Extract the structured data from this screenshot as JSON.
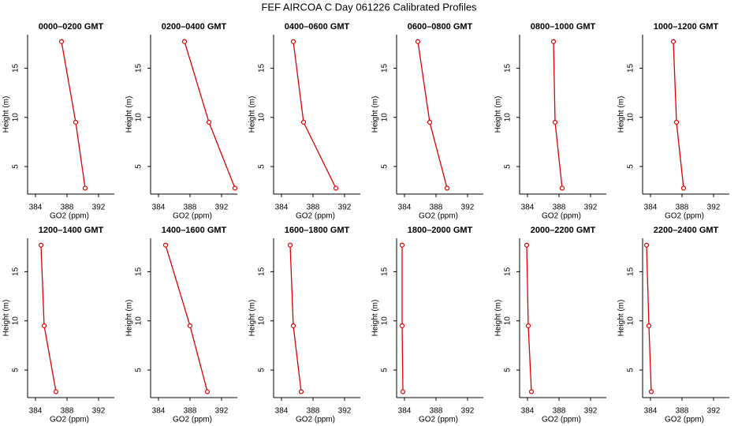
{
  "title": "FEF AIRCOA C  Day 061226  Calibrated Profiles",
  "chart_data": [
    {
      "type": "line",
      "title": "0000–0200 GMT",
      "x_label": "GO2 (ppm)",
      "y_label": "Height (m)",
      "color": "#dd0000",
      "x": [
        387.3,
        389.1,
        390.3
      ],
      "values": [
        17.7,
        9.5,
        2.8
      ],
      "xlim": [
        383,
        394
      ],
      "ylim": [
        2.2,
        18.4
      ],
      "xticks": [
        384,
        388,
        392
      ],
      "yticks": [
        5,
        10,
        15
      ]
    },
    {
      "type": "line",
      "title": "0200–0400 GMT",
      "x_label": "GO2 (ppm)",
      "y_label": "Height (m)",
      "color": "#dd0000",
      "x": [
        387.3,
        390.4,
        393.7
      ],
      "values": [
        17.7,
        9.5,
        2.8
      ],
      "xlim": [
        383,
        394
      ],
      "ylim": [
        2.2,
        18.4
      ],
      "xticks": [
        384,
        388,
        392
      ],
      "yticks": [
        5,
        10,
        15
      ]
    },
    {
      "type": "line",
      "title": "0400–0600 GMT",
      "x_label": "GO2 (ppm)",
      "y_label": "Height (m)",
      "color": "#dd0000",
      "x": [
        385.5,
        386.8,
        390.9
      ],
      "values": [
        17.7,
        9.5,
        2.8
      ],
      "xlim": [
        383,
        394
      ],
      "ylim": [
        2.2,
        18.4
      ],
      "xticks": [
        384,
        388,
        392
      ],
      "yticks": [
        5,
        10,
        15
      ]
    },
    {
      "type": "line",
      "title": "0600–0800 GMT",
      "x_label": "GO2 (ppm)",
      "y_label": "Height (m)",
      "color": "#dd0000",
      "x": [
        385.7,
        387.2,
        389.4
      ],
      "values": [
        17.7,
        9.5,
        2.8
      ],
      "xlim": [
        383,
        394
      ],
      "ylim": [
        2.2,
        18.4
      ],
      "xticks": [
        384,
        388,
        392
      ],
      "yticks": [
        5,
        10,
        15
      ]
    },
    {
      "type": "line",
      "title": "0800–1000 GMT",
      "x_label": "GO2 (ppm)",
      "y_label": "Height (m)",
      "color": "#dd0000",
      "x": [
        387.3,
        387.5,
        388.4
      ],
      "values": [
        17.7,
        9.5,
        2.8
      ],
      "xlim": [
        383,
        394
      ],
      "ylim": [
        2.2,
        18.4
      ],
      "xticks": [
        384,
        388,
        392
      ],
      "yticks": [
        5,
        10,
        15
      ]
    },
    {
      "type": "line",
      "title": "1000–1200 GMT",
      "x_label": "GO2 (ppm)",
      "y_label": "Height (m)",
      "color": "#dd0000",
      "x": [
        386.9,
        387.3,
        388.2
      ],
      "values": [
        17.7,
        9.5,
        2.8
      ],
      "xlim": [
        383,
        394
      ],
      "ylim": [
        2.2,
        18.4
      ],
      "xticks": [
        384,
        388,
        392
      ],
      "yticks": [
        5,
        10,
        15
      ]
    },
    {
      "type": "line",
      "title": "1200–1400 GMT",
      "x_label": "GO2 (ppm)",
      "y_label": "Height (m)",
      "color": "#dd0000",
      "x": [
        384.7,
        385.1,
        386.6
      ],
      "values": [
        17.7,
        9.5,
        2.8
      ],
      "xlim": [
        383,
        394
      ],
      "ylim": [
        2.2,
        18.4
      ],
      "xticks": [
        384,
        388,
        392
      ],
      "yticks": [
        5,
        10,
        15
      ]
    },
    {
      "type": "line",
      "title": "1400–1600 GMT",
      "x_label": "GO2 (ppm)",
      "y_label": "Height (m)",
      "color": "#dd0000",
      "x": [
        384.9,
        388.0,
        390.2
      ],
      "values": [
        17.7,
        9.5,
        2.8
      ],
      "xlim": [
        383,
        394
      ],
      "ylim": [
        2.2,
        18.4
      ],
      "xticks": [
        384,
        388,
        392
      ],
      "yticks": [
        5,
        10,
        15
      ]
    },
    {
      "type": "line",
      "title": "1600–1800 GMT",
      "x_label": "GO2 (ppm)",
      "y_label": "Height (m)",
      "color": "#dd0000",
      "x": [
        385.1,
        385.5,
        386.5
      ],
      "values": [
        17.7,
        9.5,
        2.8
      ],
      "xlim": [
        383,
        394
      ],
      "ylim": [
        2.2,
        18.4
      ],
      "xticks": [
        384,
        388,
        392
      ],
      "yticks": [
        5,
        10,
        15
      ]
    },
    {
      "type": "line",
      "title": "1800–2000 GMT",
      "x_label": "GO2 (ppm)",
      "y_label": "Height (m)",
      "color": "#dd0000",
      "x": [
        383.7,
        383.7,
        383.8
      ],
      "values": [
        17.7,
        9.5,
        2.8
      ],
      "xlim": [
        383,
        394
      ],
      "ylim": [
        2.2,
        18.4
      ],
      "xticks": [
        384,
        388,
        392
      ],
      "yticks": [
        5,
        10,
        15
      ]
    },
    {
      "type": "line",
      "title": "2000–2200 GMT",
      "x_label": "GO2 (ppm)",
      "y_label": "Height (m)",
      "color": "#dd0000",
      "x": [
        383.9,
        384.1,
        384.5
      ],
      "values": [
        17.7,
        9.5,
        2.8
      ],
      "xlim": [
        383,
        394
      ],
      "ylim": [
        2.2,
        18.4
      ],
      "xticks": [
        384,
        388,
        392
      ],
      "yticks": [
        5,
        10,
        15
      ]
    },
    {
      "type": "line",
      "title": "2200–2400 GMT",
      "x_label": "GO2 (ppm)",
      "y_label": "Height (m)",
      "color": "#dd0000",
      "x": [
        383.5,
        383.8,
        384.1
      ],
      "values": [
        17.7,
        9.5,
        2.8
      ],
      "xlim": [
        383,
        394
      ],
      "ylim": [
        2.2,
        18.4
      ],
      "xticks": [
        384,
        388,
        392
      ],
      "yticks": [
        5,
        10,
        15
      ]
    }
  ]
}
